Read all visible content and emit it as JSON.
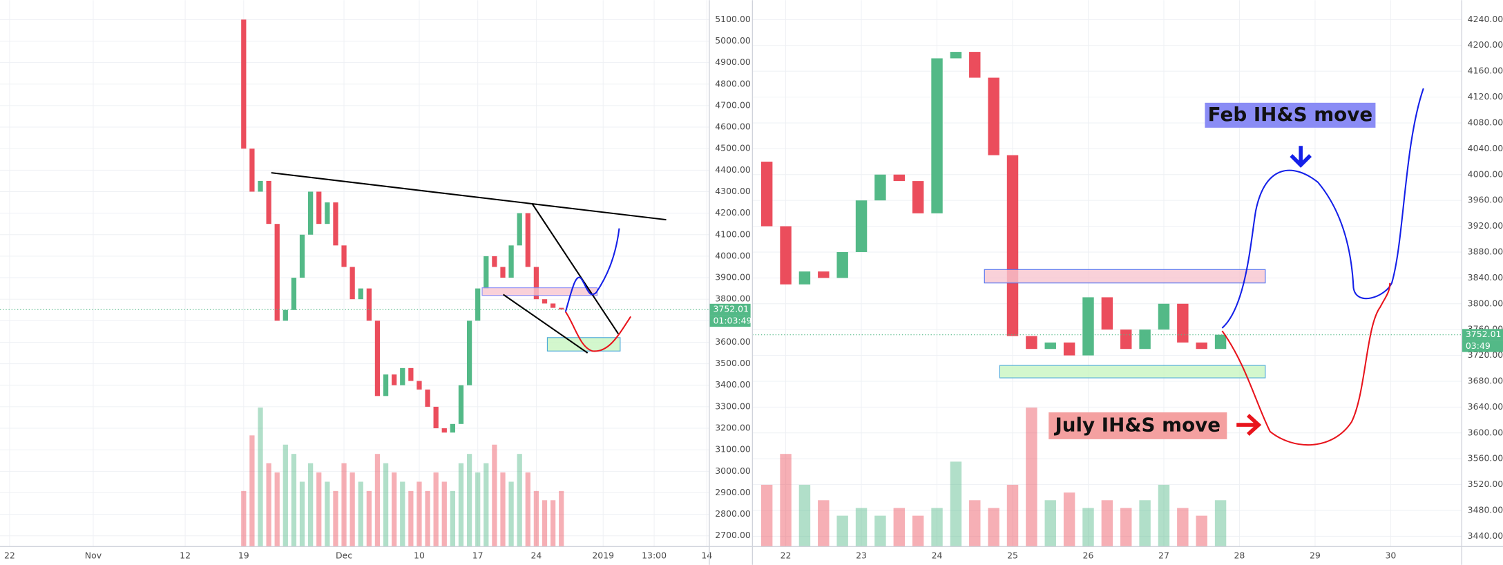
{
  "chart_data": [
    {
      "type": "candlestick",
      "grid": true,
      "up_color": "#53b987",
      "down_color": "#eb4d5c",
      "x": [
        28,
        29,
        30,
        31,
        32,
        33,
        34,
        35,
        36,
        37,
        38,
        39,
        40,
        41,
        42,
        43,
        44,
        45,
        46,
        47,
        48,
        49,
        50,
        51,
        52,
        53,
        54,
        55,
        56,
        57,
        58,
        59,
        60,
        61,
        62,
        63,
        64,
        65,
        66
      ],
      "open": [
        5100,
        4500,
        4300,
        4350,
        4150,
        3700,
        3750,
        3900,
        4100,
        4300,
        4150,
        4250,
        4050,
        3950,
        3800,
        3850,
        3700,
        3350,
        3450,
        3400,
        3480,
        3420,
        3380,
        3300,
        3200,
        3180,
        3220,
        3400,
        3700,
        3850,
        4000,
        3950,
        3900,
        4050,
        4200,
        3950,
        3800,
        3780,
        3760
      ],
      "close": [
        4500,
        4300,
        4350,
        4150,
        3700,
        3750,
        3900,
        4100,
        4300,
        4150,
        4250,
        4050,
        3950,
        3800,
        3850,
        3700,
        3350,
        3450,
        3400,
        3480,
        3420,
        3380,
        3300,
        3200,
        3180,
        3220,
        3400,
        3700,
        3850,
        4000,
        3950,
        3900,
        4050,
        4200,
        3950,
        3800,
        3780,
        3760,
        3752
      ],
      "volume": [
        30,
        60,
        75,
        45,
        40,
        55,
        50,
        35,
        45,
        40,
        35,
        30,
        45,
        40,
        35,
        30,
        50,
        45,
        40,
        35,
        30,
        35,
        30,
        40,
        35,
        30,
        45,
        50,
        40,
        45,
        55,
        40,
        35,
        50,
        40,
        30,
        25,
        25,
        30
      ],
      "xlim": [
        -1.15,
        83.7
      ],
      "xticks": [
        {
          "value": 0,
          "label": "22"
        },
        {
          "value": 10,
          "label": "Nov"
        },
        {
          "value": 21,
          "label": "12"
        },
        {
          "value": 28,
          "label": "19"
        },
        {
          "value": 40,
          "label": "Dec"
        },
        {
          "value": 49,
          "label": "10"
        },
        {
          "value": 56,
          "label": "17"
        },
        {
          "value": 63,
          "label": "24"
        },
        {
          "value": 71,
          "label": "2019"
        },
        {
          "value": 77.1,
          "label": "13:00"
        },
        {
          "value": 83.4,
          "label": "14"
        }
      ],
      "ylim": [
        2650,
        5190
      ],
      "yticks": [
        {
          "value": 2700,
          "label": "2700.00"
        },
        {
          "value": 2800,
          "label": "2800.00"
        },
        {
          "value": 2900,
          "label": "2900.00"
        },
        {
          "value": 3000,
          "label": "3000.00"
        },
        {
          "value": 3100,
          "label": "3100.00"
        },
        {
          "value": 3200,
          "label": "3200.00"
        },
        {
          "value": 3300,
          "label": "3300.00"
        },
        {
          "value": 3400,
          "label": "3400.00"
        },
        {
          "value": 3500,
          "label": "3500.00"
        },
        {
          "value": 3600,
          "label": "3600.00"
        },
        {
          "value": 3700,
          "label": "3700.00"
        },
        {
          "value": 3800,
          "label": "3800.00"
        },
        {
          "value": 3900,
          "label": "3900.00"
        },
        {
          "value": 4000,
          "label": "4000.00"
        },
        {
          "value": 4100,
          "label": "4100.00"
        },
        {
          "value": 4200,
          "label": "4200.00"
        },
        {
          "value": 4300,
          "label": "4300.00"
        },
        {
          "value": 4400,
          "label": "4400.00"
        },
        {
          "value": 4500,
          "label": "4500.00"
        },
        {
          "value": 4600,
          "label": "4600.00"
        },
        {
          "value": 4700,
          "label": "4700.00"
        },
        {
          "value": 4800,
          "label": "4800.00"
        },
        {
          "value": 4900,
          "label": "4900.00"
        },
        {
          "value": 5000,
          "label": "5000.00"
        },
        {
          "value": 5100,
          "label": "5100.00"
        }
      ],
      "last_price": 3752.01,
      "countdown": "01:03:49"
    },
    {
      "type": "candlestick",
      "grid": true,
      "up_color": "#53b987",
      "down_color": "#eb4d5c",
      "x": [
        21.75,
        22,
        22.25,
        22.5,
        22.75,
        23,
        23.25,
        23.5,
        23.75,
        24,
        24.25,
        24.5,
        24.75,
        25,
        25.25,
        25.5,
        25.75,
        26,
        26.25,
        26.5,
        26.75,
        27,
        27.25,
        27.5,
        27.75
      ],
      "open": [
        4020,
        3920,
        3830,
        3850,
        3840,
        3880,
        3960,
        4000,
        3990,
        3940,
        4180,
        4190,
        4150,
        4030,
        3750,
        3730,
        3740,
        3720,
        3810,
        3760,
        3730,
        3760,
        3800,
        3740,
        3730
      ],
      "close": [
        3920,
        3830,
        3850,
        3840,
        3880,
        3960,
        4000,
        3990,
        3940,
        4180,
        4190,
        4150,
        4030,
        3750,
        3730,
        3740,
        3720,
        3810,
        3760,
        3730,
        3760,
        3800,
        3740,
        3730,
        3752
      ],
      "volume": [
        40,
        60,
        40,
        30,
        20,
        25,
        20,
        25,
        20,
        25,
        55,
        30,
        25,
        40,
        90,
        30,
        35,
        25,
        30,
        25,
        30,
        40,
        25,
        20,
        30
      ],
      "xlim": [
        21.56,
        30.94
      ],
      "xticks": [
        22,
        23,
        24,
        25,
        26,
        27,
        28,
        29,
        30
      ],
      "ylim": [
        3424,
        4270
      ],
      "yticks": [
        {
          "value": 3440,
          "label": "3440.00"
        },
        {
          "value": 3480,
          "label": "3480.00"
        },
        {
          "value": 3520,
          "label": "3520.00"
        },
        {
          "value": 3560,
          "label": "3560.00"
        },
        {
          "value": 3600,
          "label": "3600.00"
        },
        {
          "value": 3640,
          "label": "3640.00"
        },
        {
          "value": 3680,
          "label": "3680.00"
        },
        {
          "value": 3720,
          "label": "3720.00"
        },
        {
          "value": 3760,
          "label": "3760.00"
        },
        {
          "value": 3800,
          "label": "3800.00"
        },
        {
          "value": 3840,
          "label": "3840.00"
        },
        {
          "value": 3880,
          "label": "3880.00"
        },
        {
          "value": 3920,
          "label": "3920.00"
        },
        {
          "value": 3960,
          "label": "3960.00"
        },
        {
          "value": 4000,
          "label": "4000.00"
        },
        {
          "value": 4040,
          "label": "4040.00"
        },
        {
          "value": 4080,
          "label": "4080.00"
        },
        {
          "value": 4120,
          "label": "4120.00"
        },
        {
          "value": 4160,
          "label": "4160.00"
        },
        {
          "value": 4200,
          "label": "4200.00"
        },
        {
          "value": 4240,
          "label": "4240.00"
        }
      ],
      "last_price": 3752.01,
      "countdown": "03:49",
      "annotations": [
        "Feb IH&S move",
        "July IH&S move"
      ]
    }
  ]
}
